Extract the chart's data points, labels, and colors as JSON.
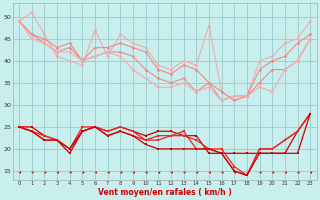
{
  "x": [
    0,
    1,
    2,
    3,
    4,
    5,
    6,
    7,
    8,
    9,
    10,
    11,
    12,
    13,
    14,
    15,
    16,
    17,
    18,
    19,
    20,
    21,
    22,
    23
  ],
  "pink_series": [
    [
      49,
      51,
      46,
      41,
      40,
      39,
      47,
      41,
      46,
      44,
      43,
      39,
      38,
      40,
      39,
      48,
      33,
      31,
      32,
      40,
      41,
      44,
      45,
      49
    ],
    [
      49,
      46,
      45,
      43,
      44,
      40,
      43,
      43,
      44,
      43,
      42,
      38,
      37,
      39,
      38,
      35,
      33,
      31,
      32,
      38,
      40,
      41,
      44,
      46
    ],
    [
      49,
      46,
      44,
      42,
      43,
      40,
      41,
      42,
      42,
      41,
      38,
      36,
      35,
      36,
      33,
      35,
      31,
      32,
      32,
      35,
      38,
      38,
      40,
      45
    ],
    [
      49,
      45,
      44,
      42,
      42,
      40,
      41,
      42,
      41,
      38,
      36,
      34,
      34,
      35,
      33,
      34,
      31,
      32,
      32,
      34,
      33,
      38,
      40,
      45
    ]
  ],
  "red_series": [
    [
      25,
      25,
      23,
      22,
      19,
      24,
      25,
      24,
      25,
      24,
      23,
      24,
      24,
      23,
      23,
      19,
      19,
      19,
      19,
      19,
      19,
      19,
      24,
      28
    ],
    [
      25,
      24,
      23,
      22,
      20,
      24,
      25,
      24,
      25,
      24,
      22,
      23,
      23,
      23,
      22,
      20,
      20,
      16,
      14,
      20,
      20,
      22,
      24,
      28
    ],
    [
      25,
      24,
      22,
      22,
      20,
      25,
      25,
      23,
      24,
      23,
      22,
      22,
      23,
      24,
      20,
      20,
      19,
      15,
      14,
      20,
      20,
      22,
      24,
      28
    ],
    [
      25,
      24,
      22,
      22,
      20,
      24,
      25,
      23,
      24,
      23,
      21,
      20,
      20,
      20,
      20,
      20,
      19,
      15,
      14,
      19,
      19,
      19,
      19,
      28
    ]
  ],
  "pink_color": "#f48888",
  "pink_color2": "#f4aaaa",
  "red_color": "#cc0000",
  "red_color2": "#ee2222",
  "xlabel": "Vent moyen/en rafales ( km/h )",
  "ylim": [
    13,
    53
  ],
  "yticks": [
    15,
    20,
    25,
    30,
    35,
    40,
    45,
    50
  ],
  "bg_color": "#c8eeee",
  "grid_color": "#99cccc"
}
